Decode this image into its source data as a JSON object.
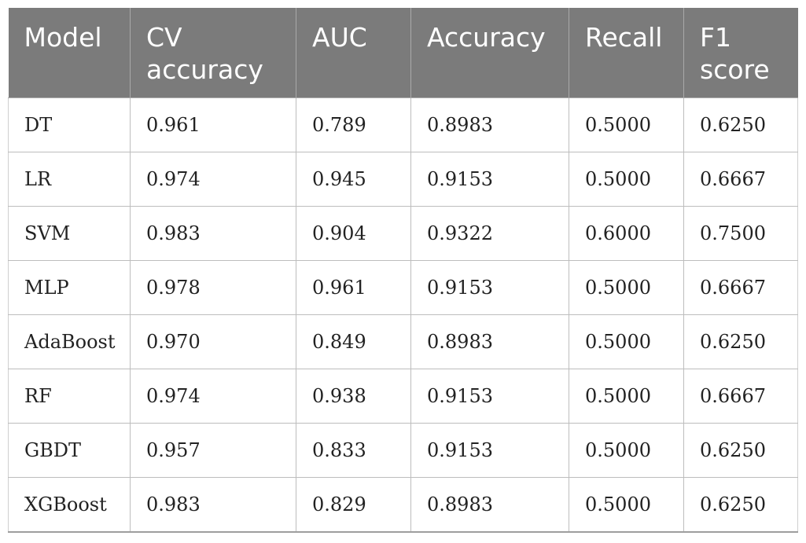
{
  "table": {
    "headers": [
      "Model",
      "CV accuracy",
      "AUC",
      "Accuracy",
      "Recall",
      "F1 score"
    ],
    "rows": [
      [
        "DT",
        "0.961",
        "0.789",
        "0.8983",
        "0.5000",
        "0.6250"
      ],
      [
        "LR",
        "0.974",
        "0.945",
        "0.9153",
        "0.5000",
        "0.6667"
      ],
      [
        "SVM",
        "0.983",
        "0.904",
        "0.9322",
        "0.6000",
        "0.7500"
      ],
      [
        "MLP",
        "0.978",
        "0.961",
        "0.9153",
        "0.5000",
        "0.6667"
      ],
      [
        "AdaBoost",
        "0.970",
        "0.849",
        "0.8983",
        "0.5000",
        "0.6250"
      ],
      [
        "RF",
        "0.974",
        "0.938",
        "0.9153",
        "0.5000",
        "0.6667"
      ],
      [
        "GBDT",
        "0.957",
        "0.833",
        "0.9153",
        "0.5000",
        "0.6250"
      ],
      [
        "XGBoost",
        "0.983",
        "0.829",
        "0.8983",
        "0.5000",
        "0.6250"
      ]
    ]
  },
  "colors": {
    "header_bg": "#7b7b7b",
    "header_text": "#ffffff",
    "cell_text": "#222222",
    "grid": "#bdbdbd"
  }
}
